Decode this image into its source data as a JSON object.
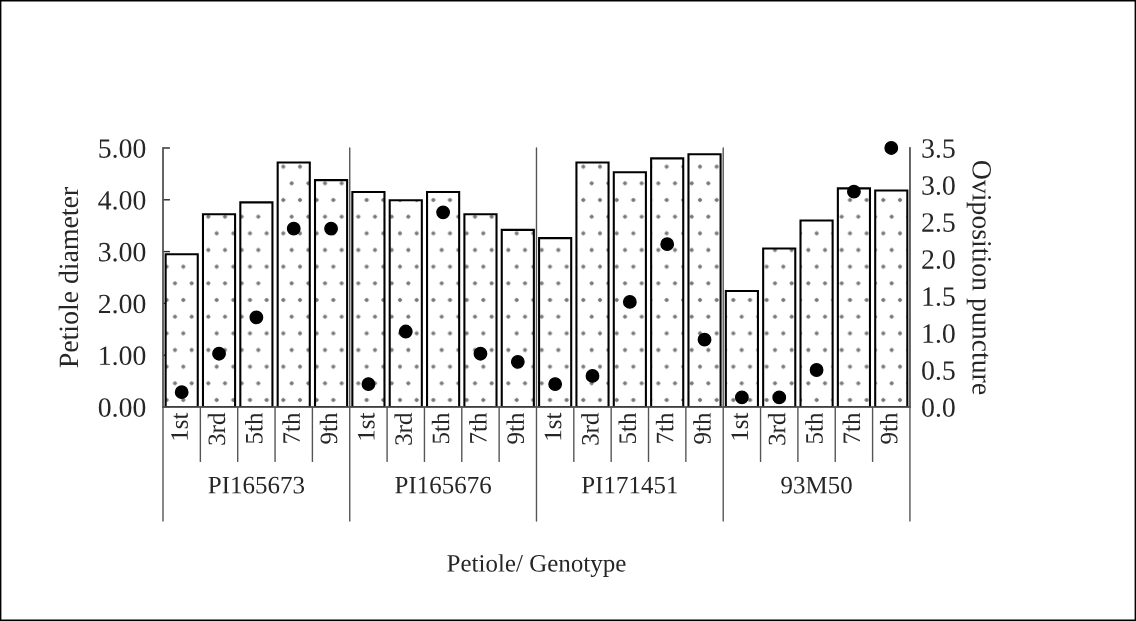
{
  "chart_data": {
    "type": "bar",
    "xlabel": "Petiole/ Genotype",
    "ylabel": "Petiole diameter",
    "y2label": "Oviposition puncture",
    "categories": [
      "1st",
      "3rd",
      "5th",
      "7th",
      "9th",
      "1st",
      "3rd",
      "5th",
      "7th",
      "9th",
      "1st",
      "3rd",
      "5th",
      "7th",
      "9th",
      "1st",
      "3rd",
      "5th",
      "7th",
      "9th"
    ],
    "series": [
      {
        "color": "#ffffff",
        "values": [
          2.95,
          3.72,
          3.95,
          4.72,
          4.38,
          4.15,
          3.99,
          4.15,
          3.72,
          3.42,
          3.26,
          4.72,
          4.53,
          4.8,
          4.88,
          2.24,
          3.06,
          3.6,
          4.22,
          4.18
        ]
      },
      {
        "type": "scatter",
        "axis": "y2",
        "color": "#000000",
        "values": [
          0.2,
          0.72,
          1.21,
          2.41,
          2.41,
          0.31,
          1.02,
          2.63,
          0.72,
          0.61,
          0.31,
          0.42,
          1.42,
          2.2,
          0.91,
          0.13,
          0.13,
          0.5,
          2.91,
          3.5
        ]
      }
    ],
    "annotations": [
      "PI165673",
      "PI165676",
      "PI171451",
      "93M50"
    ],
    "ylim": [
      0,
      5
    ],
    "yticks": [
      {
        "value": 0,
        "label": "0.00"
      },
      {
        "value": 1,
        "label": "1.00"
      },
      {
        "value": 2,
        "label": "2.00"
      },
      {
        "value": 3,
        "label": "3.00"
      },
      {
        "value": 4,
        "label": "4.00"
      },
      {
        "value": 5,
        "label": "5.00"
      }
    ],
    "y2lim": [
      0,
      3.5
    ],
    "y2ticks": [
      {
        "value": 0,
        "label": "0.0"
      },
      {
        "value": 0.5,
        "label": "0.5"
      },
      {
        "value": 1,
        "label": "1.0"
      },
      {
        "value": 1.5,
        "label": "1.5"
      },
      {
        "value": 2,
        "label": "2.0"
      },
      {
        "value": 2.5,
        "label": "2.5"
      },
      {
        "value": 3,
        "label": "3.0"
      },
      {
        "value": 3.5,
        "label": "3.5"
      }
    ],
    "marker": "circle",
    "grid": false,
    "legend": false
  }
}
